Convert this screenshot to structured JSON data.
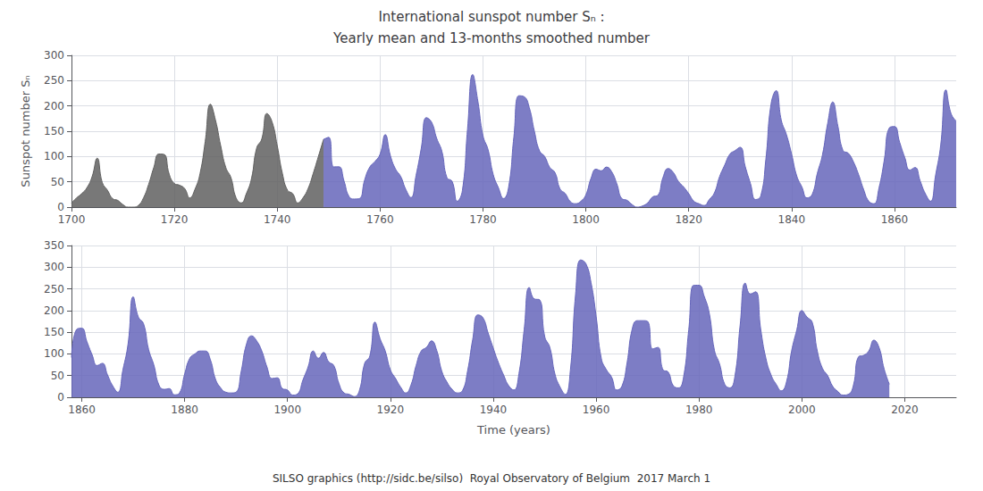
{
  "chart_data": [
    {
      "type": "area",
      "title": "International sunspot number Sₙ :",
      "subtitle": "Yearly mean and 13-months smoothed number",
      "ylabel": "Sunspot number Sₙ",
      "xlim": [
        1700,
        1872
      ],
      "xticks": [
        1700,
        1720,
        1740,
        1760,
        1780,
        1800,
        1820,
        1840,
        1860
      ],
      "ylim": [
        0,
        300
      ],
      "yticks": [
        0,
        50,
        100,
        150,
        200,
        250,
        300
      ],
      "grid": true,
      "x": [
        1700,
        1701,
        1702,
        1703,
        1704,
        1705,
        1706,
        1707,
        1708,
        1709,
        1710,
        1711,
        1712,
        1713,
        1714,
        1715,
        1716,
        1717,
        1718,
        1719,
        1720,
        1721,
        1722,
        1723,
        1724,
        1725,
        1726,
        1727,
        1728,
        1729,
        1730,
        1731,
        1732,
        1733,
        1734,
        1735,
        1736,
        1737,
        1738,
        1739,
        1740,
        1741,
        1742,
        1743,
        1744,
        1745,
        1746,
        1747,
        1748,
        1749,
        1750,
        1751,
        1752,
        1753,
        1754,
        1755,
        1756,
        1757,
        1758,
        1759,
        1760,
        1761,
        1762,
        1763,
        1764,
        1765,
        1766,
        1767,
        1768,
        1769,
        1770,
        1771,
        1772,
        1773,
        1774,
        1775,
        1776,
        1777,
        1778,
        1779,
        1780,
        1781,
        1782,
        1783,
        1784,
        1785,
        1786,
        1787,
        1788,
        1789,
        1790,
        1791,
        1792,
        1793,
        1794,
        1795,
        1796,
        1797,
        1798,
        1799,
        1800,
        1801,
        1802,
        1803,
        1804,
        1805,
        1806,
        1807,
        1808,
        1809,
        1810,
        1811,
        1812,
        1813,
        1814,
        1815,
        1816,
        1817,
        1818,
        1819,
        1820,
        1821,
        1822,
        1823,
        1824,
        1825,
        1826,
        1827,
        1828,
        1829,
        1830,
        1831,
        1832,
        1833,
        1834,
        1835,
        1836,
        1837,
        1838,
        1839,
        1840,
        1841,
        1842,
        1843,
        1844,
        1845,
        1846,
        1847,
        1848,
        1849,
        1850,
        1851,
        1852,
        1853,
        1854,
        1855,
        1856,
        1857,
        1858,
        1859,
        1860,
        1861,
        1862,
        1863,
        1864,
        1865,
        1866,
        1867,
        1868,
        1869,
        1870,
        1871,
        1872
      ],
      "series": [
        {
          "color": "#606060",
          "values": [
            8.3,
            18.3,
            26.7,
            38.3,
            60.0,
            96.7,
            48.3,
            33.3,
            16.7,
            13.3,
            5.0,
            0.0,
            0.0,
            3.3,
            18.3,
            45.0,
            78.3,
            105.0,
            104.2,
            65.0,
            46.7,
            43.3,
            36.7,
            18.3,
            35.0,
            66.7,
            130.0,
            203.5,
            171.7,
            121.7,
            78.3,
            58.3,
            18.3,
            8.3,
            26.7,
            56.7,
            116.7,
            135.0,
            185.0,
            168.3,
            121.7,
            66.7,
            33.3,
            26.7,
            8.3,
            18.3,
            36.7,
            66.7,
            100.0,
            134.0,
            null,
            null,
            null,
            null,
            null,
            null,
            null,
            null,
            null,
            null,
            null,
            null,
            null,
            null,
            null,
            null,
            null,
            null,
            null,
            null,
            null,
            null,
            null,
            null,
            null,
            null,
            null,
            null,
            null,
            null,
            null,
            null,
            null,
            null,
            null,
            null,
            null,
            null,
            null,
            null,
            null,
            null,
            null,
            null,
            null,
            null,
            null,
            null,
            null,
            null,
            null,
            null,
            null,
            null,
            null,
            null,
            null,
            null,
            null,
            null,
            null,
            null,
            null,
            null,
            null,
            null,
            null,
            null,
            null,
            null,
            null,
            null,
            null,
            null,
            null,
            null,
            null,
            null,
            null,
            null,
            null,
            null,
            null,
            null,
            null,
            null,
            null,
            null,
            null,
            null,
            null,
            null,
            null,
            null,
            null,
            null,
            null,
            null,
            null,
            null,
            null,
            null,
            null,
            null,
            null,
            null,
            null,
            null,
            null,
            null,
            null,
            null,
            null,
            null,
            null,
            null,
            null,
            null,
            null,
            null,
            null,
            null,
            null
          ]
        },
        {
          "color": "#6666bb",
          "values": [
            null,
            null,
            null,
            null,
            null,
            null,
            null,
            null,
            null,
            null,
            null,
            null,
            null,
            null,
            null,
            null,
            null,
            null,
            null,
            null,
            null,
            null,
            null,
            null,
            null,
            null,
            null,
            null,
            null,
            null,
            null,
            null,
            null,
            null,
            null,
            null,
            null,
            null,
            null,
            null,
            null,
            null,
            null,
            null,
            null,
            null,
            null,
            null,
            null,
            134.0,
            138.0,
            79.5,
            79.7,
            51.2,
            20.3,
            16.0,
            17.0,
            54.0,
            79.3,
            90.0,
            104.8,
            143.2,
            101.8,
            75.2,
            60.7,
            34.8,
            19.0,
            63.0,
            116.3,
            176.8,
            168.0,
            136.0,
            110.8,
            58.0,
            51.0,
            11.7,
            33.0,
            154.5,
            262.0,
            209.8,
            141.3,
            113.2,
            64.2,
            38.3,
            17.0,
            40.2,
            138.2,
            220.2,
            218.2,
            196.8,
            149.8,
            111.0,
            100.0,
            78.2,
            68.3,
            35.5,
            26.7,
            10.7,
            6.8,
            11.3,
            24.2,
            56.7,
            75.0,
            71.8,
            79.2,
            70.3,
            46.8,
            16.8,
            13.5,
            5.0,
            0.0,
            2.3,
            8.3,
            20.3,
            23.2,
            58.7,
            76.3,
            68.5,
            50.7,
            40.0,
            26.7,
            11.7,
            6.7,
            3.3,
            15.0,
            28.3,
            60.3,
            83.2,
            104.7,
            111.7,
            118.3,
            79.7,
            46.7,
            15.0,
            21.7,
            95.0,
            203.3,
            230.3,
            171.7,
            143.3,
            105.0,
            61.7,
            40.0,
            18.3,
            25.0,
            66.7,
            103.3,
            164.8,
            207.8,
            160.3,
            111.7,
            106.7,
            90.0,
            65.0,
            35.0,
            11.7,
            6.7,
            38.3,
            91.7,
            156.7,
            159.3,
            128.3,
            98.3,
            73.3,
            78.3,
            51.7,
            26.7,
            11.7,
            63.3,
            123.3,
            231.7,
            185.0,
            170.0
          ]
        }
      ]
    },
    {
      "type": "area",
      "xlabel": "Time (years)",
      "annotation": "SILSO graphics (http://sidc.be/silso)  Royal Observatory of Belgium  2017 March 1",
      "xlim": [
        1858,
        2030
      ],
      "xticks": [
        1860,
        1880,
        1900,
        1920,
        1940,
        1960,
        1980,
        2000,
        2020
      ],
      "ylim": [
        0,
        350
      ],
      "yticks": [
        0,
        50,
        100,
        150,
        200,
        250,
        300,
        350
      ],
      "grid": true,
      "x": [
        1858,
        1859,
        1860,
        1861,
        1862,
        1863,
        1864,
        1865,
        1866,
        1867,
        1868,
        1869,
        1870,
        1871,
        1872,
        1873,
        1874,
        1875,
        1876,
        1877,
        1878,
        1879,
        1880,
        1881,
        1882,
        1883,
        1884,
        1885,
        1886,
        1887,
        1888,
        1889,
        1890,
        1891,
        1892,
        1893,
        1894,
        1895,
        1896,
        1897,
        1898,
        1899,
        1900,
        1901,
        1902,
        1903,
        1904,
        1905,
        1906,
        1907,
        1908,
        1909,
        1910,
        1911,
        1912,
        1913,
        1914,
        1915,
        1916,
        1917,
        1918,
        1919,
        1920,
        1921,
        1922,
        1923,
        1924,
        1925,
        1926,
        1927,
        1928,
        1929,
        1930,
        1931,
        1932,
        1933,
        1934,
        1935,
        1936,
        1937,
        1938,
        1939,
        1940,
        1941,
        1942,
        1943,
        1944,
        1945,
        1946,
        1947,
        1948,
        1949,
        1950,
        1951,
        1952,
        1953,
        1954,
        1955,
        1956,
        1957,
        1958,
        1959,
        1960,
        1961,
        1962,
        1963,
        1964,
        1965,
        1966,
        1967,
        1968,
        1969,
        1970,
        1971,
        1972,
        1973,
        1974,
        1975,
        1976,
        1977,
        1978,
        1979,
        1980,
        1981,
        1982,
        1983,
        1984,
        1985,
        1986,
        1987,
        1988,
        1989,
        1990,
        1991,
        1992,
        1993,
        1994,
        1995,
        1996,
        1997,
        1998,
        1999,
        2000,
        2001,
        2002,
        2003,
        2004,
        2005,
        2006,
        2007,
        2008,
        2009,
        2010,
        2011,
        2012,
        2013,
        2014,
        2015,
        2016,
        2017
      ],
      "series": [
        {
          "color": "#6666bb",
          "values": [
            91.7,
            156.7,
            159.3,
            128.3,
            98.3,
            73.3,
            78.3,
            51.7,
            26.7,
            11.7,
            63.3,
            123.3,
            231.7,
            185.0,
            170.0,
            110.0,
            75.0,
            28.3,
            18.3,
            20.0,
            5.7,
            10.0,
            53.7,
            90.0,
            100.0,
            106.7,
            106.7,
            86.7,
            41.7,
            21.7,
            11.7,
            10.0,
            11.7,
            60.0,
            121.7,
            141.7,
            130.0,
            106.7,
            70.0,
            43.3,
            45.0,
            20.0,
            16.7,
            5.0,
            8.3,
            40.0,
            70.0,
            106.7,
            90.0,
            103.3,
            81.7,
            73.3,
            31.7,
            10.0,
            6.7,
            1.7,
            16.7,
            78.3,
            95.0,
            173.2,
            135.0,
            106.7,
            63.3,
            43.3,
            23.3,
            10.0,
            28.3,
            73.3,
            106.7,
            115.0,
            130.0,
            108.3,
            60.0,
            35.0,
            18.3,
            10.0,
            15.0,
            60.0,
            133.3,
            190.0,
            183.3,
            148.3,
            113.3,
            80.0,
            51.7,
            26.7,
            16.7,
            55.0,
            155.0,
            253.3,
            226.7,
            225.0,
            140.0,
            115.0,
            53.3,
            23.3,
            6.7,
            63.3,
            236.7,
            316.7,
            308.3,
            265.0,
            186.7,
            90.0,
            63.3,
            46.7,
            16.7,
            25.0,
            78.3,
            156.7,
            176.7,
            176.7,
            175.0,
            111.7,
            115.0,
            63.3,
            58.3,
            26.7,
            21.7,
            46.7,
            155.0,
            258.3,
            258.3,
            233.3,
            193.3,
            108.3,
            76.7,
            30.0,
            21.7,
            50.0,
            166.7,
            263.3,
            238.3,
            243.3,
            156.7,
            90.0,
            51.7,
            30.0,
            15.0,
            35.0,
            106.7,
            155.0,
            200.0,
            185.0,
            173.3,
            106.7,
            66.7,
            50.0,
            25.0,
            13.3,
            5.0,
            6.7,
            26.7,
            93.3,
            96.7,
            106.7,
            131.7,
            115.0,
            65.0,
            30.0
          ]
        }
      ]
    }
  ]
}
